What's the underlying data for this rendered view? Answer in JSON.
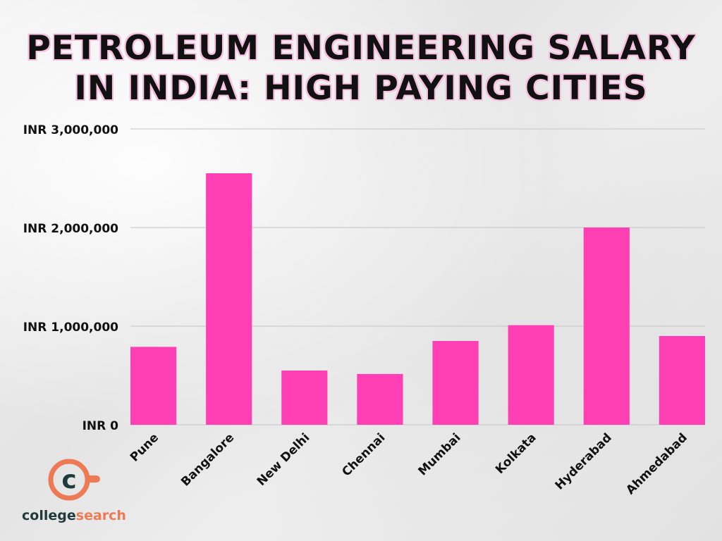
{
  "chart_data": {
    "type": "bar",
    "title_lines": [
      "PETROLEUM ENGINEERING SALARY",
      "IN INDIA: HIGH PAYING CITIES"
    ],
    "categories": [
      "Pune",
      "Bangalore",
      "New Delhi",
      "Chennai",
      "Mumbai",
      "Kolkata",
      "Hyderabad",
      "Ahmedabad"
    ],
    "values": [
      790000,
      2550000,
      550000,
      515000,
      850000,
      1010000,
      2000000,
      900000
    ],
    "ylim": [
      0,
      3000000
    ],
    "yticks": [
      0,
      1000000,
      2000000,
      3000000
    ],
    "ytick_labels": [
      "INR 0",
      "INR 1,000,000",
      "INR 2,000,000",
      "INR 3,000,000"
    ],
    "grid": true,
    "bar_color": "#ff40b4",
    "xlabel": "",
    "ylabel": ""
  },
  "logo": {
    "text_part1": "college",
    "text_part2": "search",
    "letter": "c",
    "ring_color": "#ee7a55",
    "text_color": "#1f3a3a"
  }
}
